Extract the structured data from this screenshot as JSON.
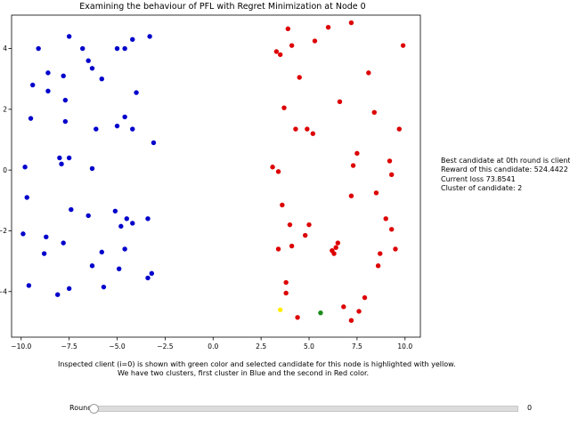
{
  "chart_data": {
    "type": "scatter",
    "title": "Examining the behaviour of PFL with Regret Minimization at Node 0",
    "xlim": [
      -10.5,
      10.8
    ],
    "ylim": [
      -5.5,
      5.1
    ],
    "xticks": [
      -10.0,
      -7.5,
      -5.0,
      -2.5,
      0.0,
      2.5,
      5.0,
      7.5,
      10.0
    ],
    "xtick_labels": [
      "−10.0",
      "−7.5",
      "−5.0",
      "−2.5",
      "0.0",
      "2.5",
      "5.0",
      "7.5",
      "10.0"
    ],
    "yticks": [
      -4,
      -2,
      0,
      2,
      4
    ],
    "ytick_labels": [
      "−4",
      "−2",
      "0",
      "2",
      "4"
    ],
    "grid": false,
    "series": [
      {
        "color": "#0000cc",
        "points": [
          [
            -9.1,
            4.0
          ],
          [
            -7.5,
            4.4
          ],
          [
            -6.8,
            4.0
          ],
          [
            -5.0,
            4.0
          ],
          [
            -4.6,
            4.0
          ],
          [
            -4.2,
            4.3
          ],
          [
            -3.3,
            4.4
          ],
          [
            -8.6,
            3.2
          ],
          [
            -7.8,
            3.1
          ],
          [
            -6.5,
            3.6
          ],
          [
            -6.3,
            3.35
          ],
          [
            -5.8,
            3.0
          ],
          [
            -9.4,
            2.8
          ],
          [
            -8.6,
            2.6
          ],
          [
            -7.7,
            2.3
          ],
          [
            -4.0,
            2.55
          ],
          [
            -9.5,
            1.7
          ],
          [
            -7.7,
            1.6
          ],
          [
            -6.1,
            1.35
          ],
          [
            -5.0,
            1.45
          ],
          [
            -4.6,
            1.75
          ],
          [
            -4.2,
            1.35
          ],
          [
            -3.1,
            0.9
          ],
          [
            -8.0,
            0.4
          ],
          [
            -7.9,
            0.2
          ],
          [
            -7.5,
            0.4
          ],
          [
            -9.8,
            0.1
          ],
          [
            -6.3,
            0.05
          ],
          [
            -9.7,
            -0.9
          ],
          [
            -7.4,
            -1.3
          ],
          [
            -6.5,
            -1.5
          ],
          [
            -5.1,
            -1.35
          ],
          [
            -4.5,
            -1.6
          ],
          [
            -4.8,
            -1.85
          ],
          [
            -4.2,
            -1.75
          ],
          [
            -3.4,
            -1.6
          ],
          [
            -9.9,
            -2.1
          ],
          [
            -8.7,
            -2.2
          ],
          [
            -7.8,
            -2.4
          ],
          [
            -8.8,
            -2.75
          ],
          [
            -5.8,
            -2.7
          ],
          [
            -4.6,
            -2.6
          ],
          [
            -6.3,
            -3.15
          ],
          [
            -4.9,
            -3.25
          ],
          [
            -3.2,
            -3.4
          ],
          [
            -3.4,
            -3.55
          ],
          [
            -9.6,
            -3.8
          ],
          [
            -7.5,
            -3.9
          ],
          [
            -5.7,
            -3.85
          ],
          [
            -8.1,
            -4.1
          ]
        ]
      },
      {
        "color": "#dd0000",
        "points": [
          [
            7.2,
            4.85
          ],
          [
            3.9,
            4.65
          ],
          [
            6.0,
            4.7
          ],
          [
            5.3,
            4.25
          ],
          [
            4.1,
            4.1
          ],
          [
            3.3,
            3.9
          ],
          [
            3.5,
            3.8
          ],
          [
            9.9,
            4.1
          ],
          [
            4.5,
            3.05
          ],
          [
            8.1,
            3.2
          ],
          [
            3.7,
            2.05
          ],
          [
            6.6,
            2.25
          ],
          [
            8.4,
            1.9
          ],
          [
            4.3,
            1.35
          ],
          [
            4.9,
            1.35
          ],
          [
            5.2,
            1.2
          ],
          [
            9.7,
            1.35
          ],
          [
            7.5,
            0.55
          ],
          [
            7.3,
            0.15
          ],
          [
            9.2,
            0.3
          ],
          [
            3.1,
            0.1
          ],
          [
            3.4,
            -0.05
          ],
          [
            9.3,
            -0.15
          ],
          [
            7.2,
            -0.85
          ],
          [
            8.5,
            -0.75
          ],
          [
            3.6,
            -1.15
          ],
          [
            9.0,
            -1.6
          ],
          [
            4.0,
            -1.8
          ],
          [
            5.0,
            -1.8
          ],
          [
            9.3,
            -1.95
          ],
          [
            4.8,
            -2.15
          ],
          [
            6.5,
            -2.4
          ],
          [
            6.4,
            -2.55
          ],
          [
            6.2,
            -2.65
          ],
          [
            6.3,
            -2.75
          ],
          [
            4.1,
            -2.5
          ],
          [
            3.4,
            -2.6
          ],
          [
            9.5,
            -2.6
          ],
          [
            8.7,
            -2.75
          ],
          [
            8.6,
            -3.15
          ],
          [
            3.8,
            -3.7
          ],
          [
            3.8,
            -4.05
          ],
          [
            7.9,
            -4.2
          ],
          [
            6.8,
            -4.5
          ],
          [
            7.6,
            -4.65
          ],
          [
            4.4,
            -4.85
          ],
          [
            7.2,
            -4.95
          ]
        ]
      }
    ],
    "highlight_points": [
      {
        "role": "selected-candidate",
        "color": "#ffee00",
        "x": 3.5,
        "y": -4.6
      },
      {
        "role": "inspected-client",
        "color": "#1a8c1a",
        "x": 5.6,
        "y": -4.7
      }
    ]
  },
  "info": {
    "line1": "Best candidate at 0th round is client: 68",
    "line2": "Reward of this candidate: 524.4422",
    "line3": "Current loss 73.8541",
    "line4": "Cluster of candidate: 2"
  },
  "caption": {
    "line1": "Inspected client (i=0) is shown with green color and selected candidate for this node is highlighted with yellow.",
    "line2": "We have two clusters, first cluster in Blue and the second in Red color."
  },
  "slider": {
    "label": "Round",
    "value": "0",
    "fraction": 0
  }
}
